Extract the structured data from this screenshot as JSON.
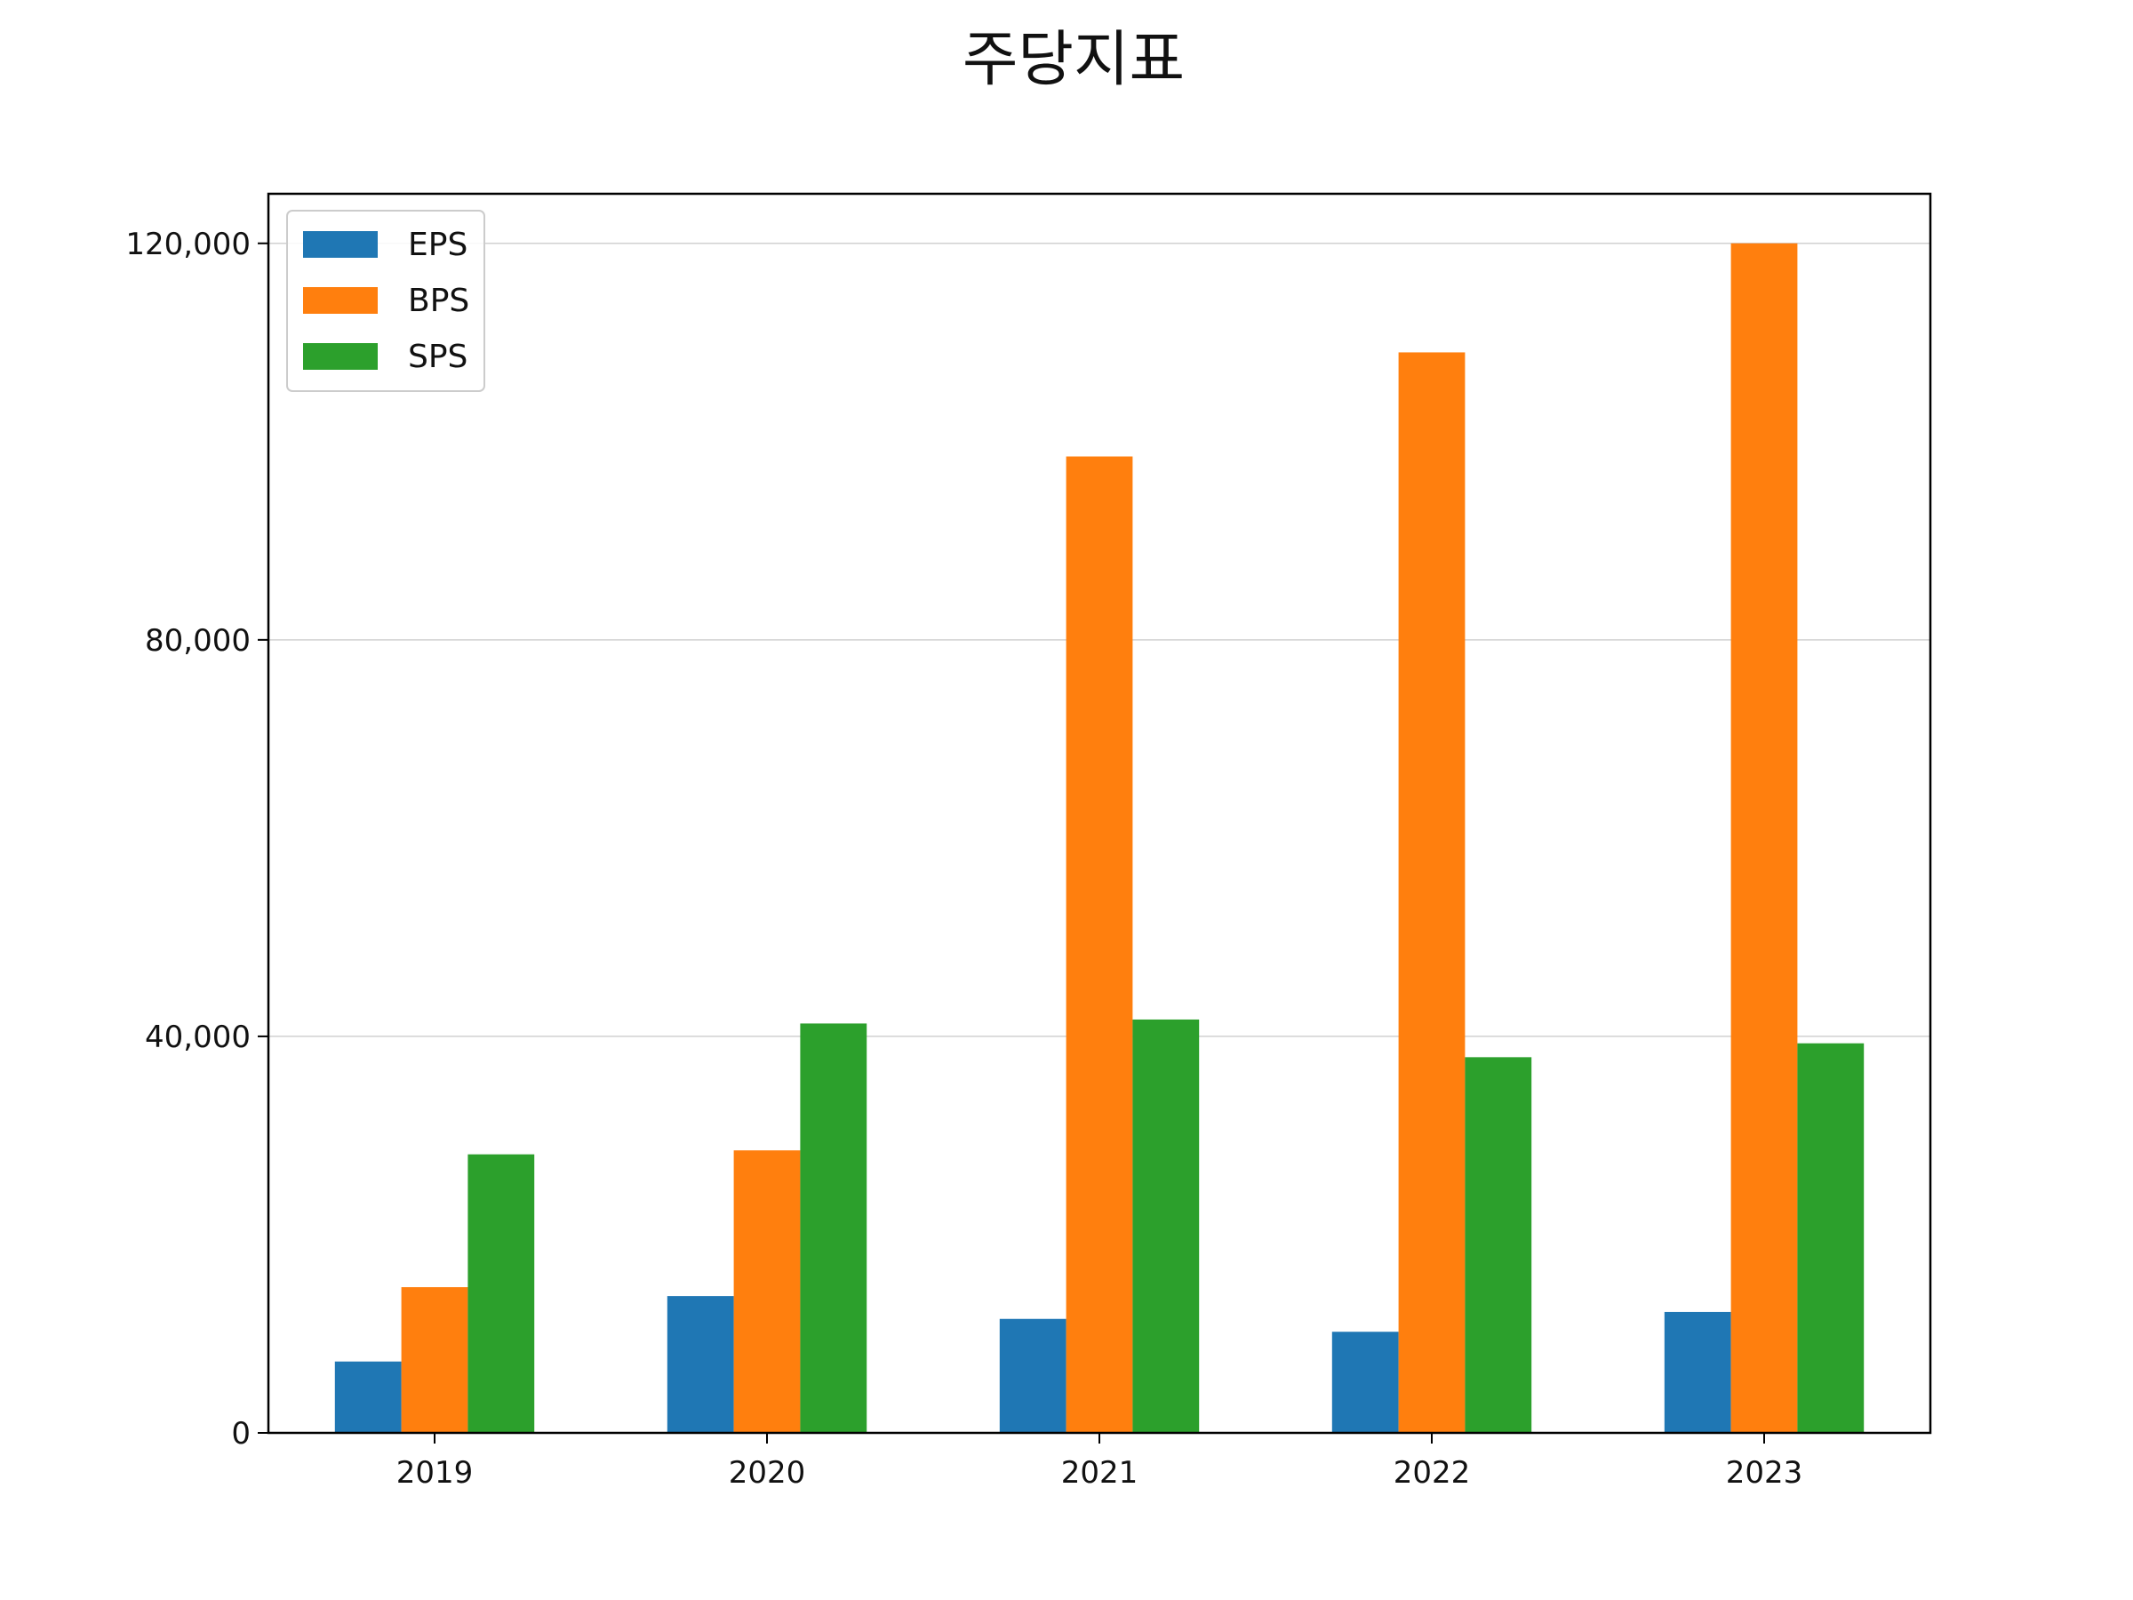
{
  "chart_data": {
    "type": "bar",
    "title": "주당지표",
    "categories": [
      "2019",
      "2020",
      "2021",
      "2022",
      "2023"
    ],
    "series": [
      {
        "name": "EPS",
        "color": "#1f77b4",
        "values": [
          7200,
          13800,
          11500,
          10200,
          12200
        ]
      },
      {
        "name": "BPS",
        "color": "#ff7f0e",
        "values": [
          14700,
          28500,
          98500,
          109000,
          120000
        ]
      },
      {
        "name": "SPS",
        "color": "#2ca02c",
        "values": [
          28100,
          41300,
          41700,
          37900,
          39300
        ]
      }
    ],
    "ylim": [
      0,
      125000
    ],
    "yticks": [
      {
        "value": 0,
        "label": "0"
      },
      {
        "value": 40000,
        "label": "40,000"
      },
      {
        "value": 80000,
        "label": "80,000"
      },
      {
        "value": 120000,
        "label": "120,000"
      }
    ],
    "grid": "y-major",
    "legend_position": "top-left",
    "xlabel": "",
    "ylabel": ""
  }
}
